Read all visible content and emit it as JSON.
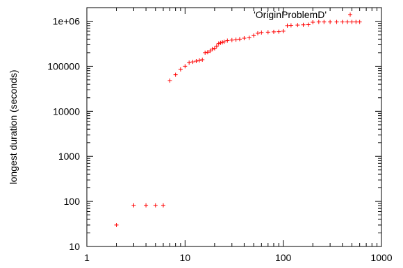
{
  "chart_data": {
    "type": "scatter",
    "title": "",
    "xlabel": "",
    "ylabel": "longest duration (seconds)",
    "xscale": "log",
    "yscale": "log",
    "xlim": [
      1,
      1000
    ],
    "ylim": [
      10,
      2000000
    ],
    "grid": false,
    "legend_position": "top-right",
    "marker": "plus",
    "series_color": "#ff0000",
    "x_ticks": [
      1,
      10,
      100,
      1000
    ],
    "x_tick_labels": [
      "1",
      "10",
      "100",
      "1000"
    ],
    "y_ticks": [
      10,
      100,
      1000,
      10000,
      100000,
      1000000
    ],
    "y_tick_labels": [
      "10",
      "100",
      "1000",
      "10000",
      "100000",
      "1e+06"
    ],
    "series": [
      {
        "name": "'OriginProblemD'",
        "x": [
          2,
          3,
          4,
          5,
          6,
          7,
          8,
          9,
          10,
          11,
          12,
          13,
          14,
          15,
          16,
          17,
          18,
          19,
          20,
          21,
          22,
          23,
          24,
          25,
          27,
          30,
          33,
          36,
          40,
          45,
          50,
          55,
          60,
          70,
          80,
          90,
          100,
          110,
          120,
          140,
          160,
          180,
          200,
          230,
          260,
          300,
          350,
          400,
          450,
          500,
          550,
          600
        ],
        "y": [
          30,
          82,
          82,
          82,
          82,
          48000,
          65000,
          85000,
          100000,
          120000,
          125000,
          130000,
          135000,
          140000,
          200000,
          205000,
          220000,
          240000,
          250000,
          280000,
          320000,
          330000,
          340000,
          350000,
          370000,
          380000,
          390000,
          400000,
          420000,
          430000,
          480000,
          540000,
          560000,
          570000,
          580000,
          585000,
          600000,
          800000,
          810000,
          820000,
          830000,
          840000,
          950000,
          960000,
          960000,
          960000,
          960000,
          960000,
          960000,
          960000,
          960000,
          960000
        ]
      }
    ]
  }
}
